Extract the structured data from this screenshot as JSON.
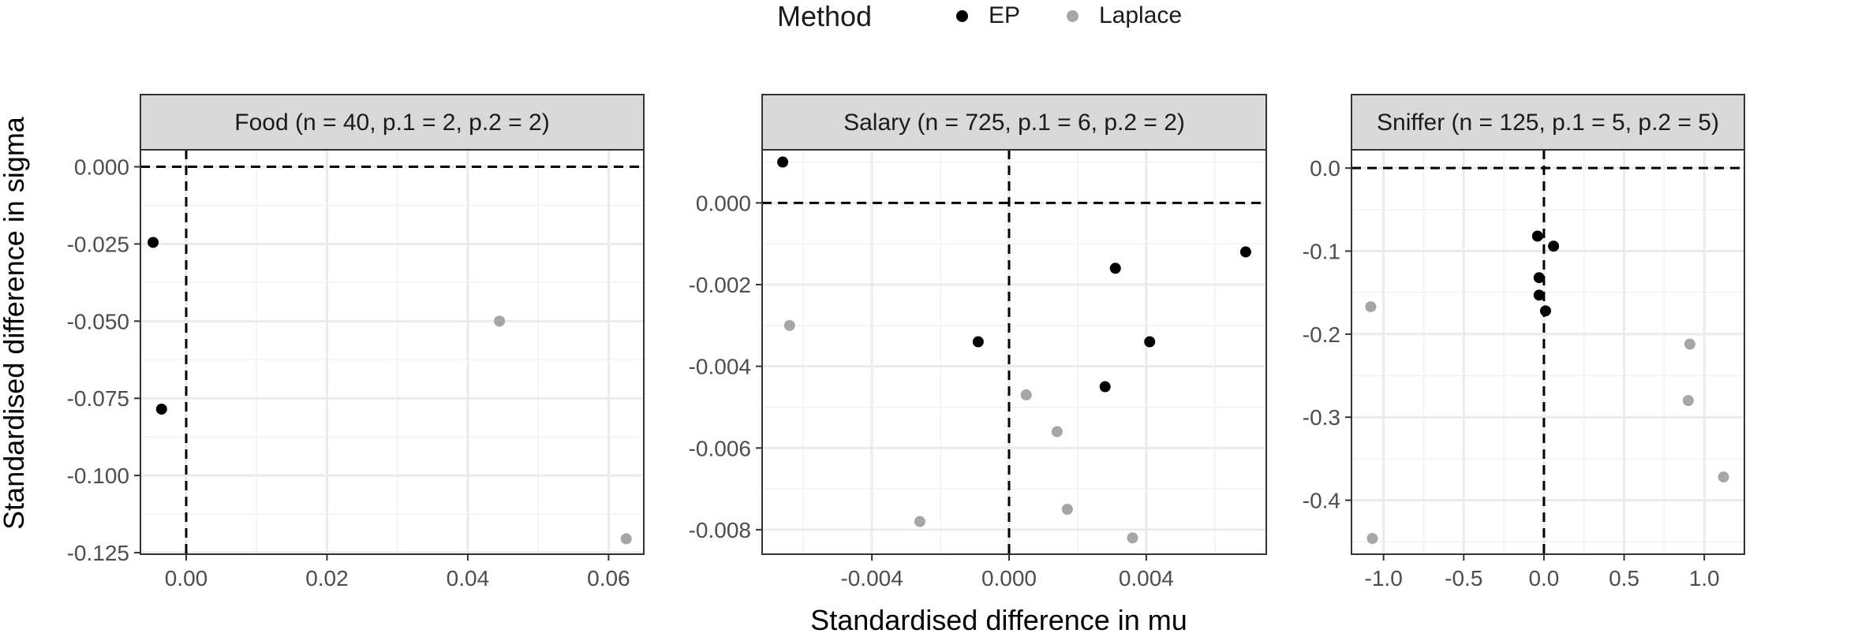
{
  "legend": {
    "title": "Method",
    "items": [
      {
        "label": "EP",
        "color": "#000000"
      },
      {
        "label": "Laplace",
        "color": "#a6a6a6"
      }
    ]
  },
  "xlabel": "Standardised difference in mu",
  "ylabel": "Standardised difference in sigma",
  "chart_data": [
    {
      "type": "scatter",
      "title": "Food (n = 40, p.1 = 2, p.2 = 2)",
      "xlim": [
        -0.0065,
        0.065
      ],
      "ylim": [
        -0.1255,
        0.0055
      ],
      "xticks": [
        0.0,
        0.02,
        0.04,
        0.06
      ],
      "xtick_labels": [
        "0.00",
        "0.02",
        "0.04",
        "0.06"
      ],
      "yticks": [
        0.0,
        -0.025,
        -0.05,
        -0.075,
        -0.1,
        -0.125
      ],
      "ytick_labels": [
        "0.000",
        "-0.025",
        "-0.050",
        "-0.075",
        "-0.100",
        "-0.125"
      ],
      "grid": true,
      "reference_lines": {
        "x": 0,
        "y": 0
      },
      "series": [
        {
          "name": "EP",
          "color": "#000000",
          "points": [
            [
              -0.0047,
              -0.0245
            ],
            [
              -0.0035,
              -0.0785
            ]
          ]
        },
        {
          "name": "Laplace",
          "color": "#a6a6a6",
          "points": [
            [
              0.0445,
              -0.05
            ],
            [
              0.0625,
              -0.1205
            ]
          ]
        }
      ]
    },
    {
      "type": "scatter",
      "title": "Salary (n = 725, p.1 = 6, p.2 = 2)",
      "xlim": [
        -0.0072,
        0.0075
      ],
      "ylim": [
        -0.0086,
        0.0013
      ],
      "xticks": [
        -0.004,
        0.0,
        0.004
      ],
      "xtick_labels": [
        "-0.004",
        "0.000",
        "0.004"
      ],
      "yticks": [
        0.0,
        -0.002,
        -0.004,
        -0.006,
        -0.008
      ],
      "ytick_labels": [
        "0.000",
        "-0.002",
        "-0.004",
        "-0.006",
        "-0.008"
      ],
      "grid": true,
      "reference_lines": {
        "x": 0,
        "y": 0
      },
      "series": [
        {
          "name": "EP",
          "color": "#000000",
          "points": [
            [
              -0.0066,
              0.001
            ],
            [
              -0.0009,
              -0.0034
            ],
            [
              0.0031,
              -0.0016
            ],
            [
              0.0041,
              -0.0034
            ],
            [
              0.0028,
              -0.0045
            ],
            [
              0.0069,
              -0.0012
            ]
          ]
        },
        {
          "name": "Laplace",
          "color": "#a6a6a6",
          "points": [
            [
              -0.0064,
              -0.003
            ],
            [
              0.0005,
              -0.0047
            ],
            [
              0.0014,
              -0.0056
            ],
            [
              0.0017,
              -0.0075
            ],
            [
              -0.0026,
              -0.0078
            ],
            [
              0.0036,
              -0.0082
            ]
          ]
        }
      ]
    },
    {
      "type": "scatter",
      "title": "Sniffer (n = 125, p.1 = 5, p.2 = 5)",
      "xlim": [
        -1.2,
        1.25
      ],
      "ylim": [
        -0.465,
        0.022
      ],
      "xticks": [
        -1.0,
        -0.5,
        0.0,
        0.5,
        1.0
      ],
      "xtick_labels": [
        "-1.0",
        "-0.5",
        "0.0",
        "0.5",
        "1.0"
      ],
      "yticks": [
        0.0,
        -0.1,
        -0.2,
        -0.3,
        -0.4
      ],
      "ytick_labels": [
        "0.0",
        "-0.1",
        "-0.2",
        "-0.3",
        "-0.4"
      ],
      "grid": true,
      "reference_lines": {
        "x": 0,
        "y": 0
      },
      "series": [
        {
          "name": "EP",
          "color": "#000000",
          "points": [
            [
              -0.04,
              -0.082
            ],
            [
              0.06,
              -0.094
            ],
            [
              -0.03,
              -0.132
            ],
            [
              -0.03,
              -0.153
            ],
            [
              0.01,
              -0.172
            ]
          ]
        },
        {
          "name": "Laplace",
          "color": "#a6a6a6",
          "points": [
            [
              -1.08,
              -0.167
            ],
            [
              0.91,
              -0.212
            ],
            [
              0.9,
              -0.28
            ],
            [
              1.12,
              -0.372
            ],
            [
              -1.07,
              -0.446
            ]
          ]
        }
      ]
    }
  ]
}
